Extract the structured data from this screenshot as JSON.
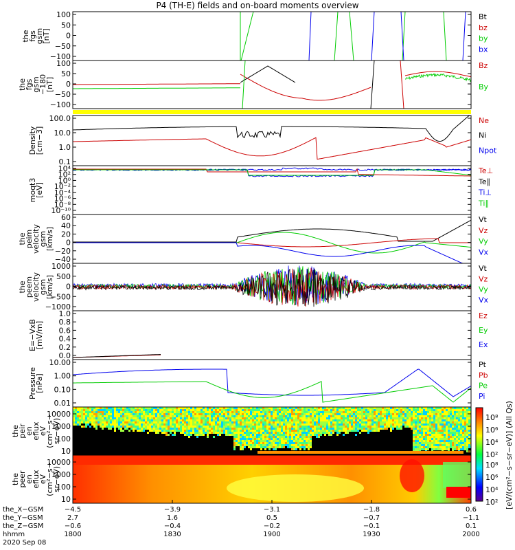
{
  "title": "P4 (TH-E) fields and on-board moments overview",
  "colors": {
    "black": "#000000",
    "red": "#cc0000",
    "green": "#00cc00",
    "blue": "#0000ee",
    "yellow": "#ffff00"
  },
  "chart_data": {
    "type": "line",
    "x_range": [
      "18:00",
      "20:00"
    ],
    "panels": [
      {
        "ylabel": [
          "the",
          "fgs",
          "gsm",
          "[nT]"
        ],
        "yticks": [
          "100",
          "50",
          "0",
          "−50",
          "−100"
        ],
        "ylim": [
          -100,
          100
        ],
        "scale": "linear",
        "legend": [
          {
            "name": "Bt",
            "color": "black"
          },
          {
            "name": "bz",
            "color": "red"
          },
          {
            "name": "by",
            "color": "green"
          },
          {
            "name": "bx",
            "color": "blue"
          }
        ]
      },
      {
        "ylabel": [
          "the",
          "fgs",
          "gsm",
          "−180",
          "[nT]"
        ],
        "yticks": [
          "100",
          "50",
          "0",
          "−50",
          "−100"
        ],
        "ylim": [
          -120,
          120
        ],
        "scale": "linear",
        "legend": [
          {
            "name": "Bz",
            "color": "red"
          },
          {
            "name": "By",
            "color": "green"
          }
        ]
      },
      {
        "ylabel": [
          "Density",
          "[cm−3]"
        ],
        "yticks": [
          "100.0",
          "10.0",
          "1.0",
          "0.1"
        ],
        "ylim": [
          0.05,
          200
        ],
        "scale": "log",
        "legend": [
          {
            "name": "Ne",
            "color": "red"
          },
          {
            "name": "Ni",
            "color": "black"
          },
          {
            "name": "Npot",
            "color": "blue"
          }
        ]
      },
      {
        "ylabel": [
          "moqt3",
          "[eV]"
        ],
        "yticks": [
          "10⁴",
          "10²",
          "10⁰",
          "10⁻²",
          "10⁻⁴",
          "10⁻⁶",
          "10⁻⁸",
          "10⁻¹⁰"
        ],
        "ylim": [
          1e-11,
          100000.0
        ],
        "scale": "log",
        "legend": [
          {
            "name": "Te⊥",
            "color": "red"
          },
          {
            "name": "Te∥",
            "color": "black"
          },
          {
            "name": "Ti⊥",
            "color": "blue"
          },
          {
            "name": "Ti∥",
            "color": "green"
          }
        ]
      },
      {
        "ylabel": [
          "the",
          "peim",
          "velocity",
          "gsm",
          "[km/s]"
        ],
        "yticks": [
          "60",
          "40",
          "20",
          "0",
          "−20",
          "−40"
        ],
        "ylim": [
          -40,
          60
        ],
        "scale": "linear",
        "legend": [
          {
            "name": "Vt",
            "color": "black"
          },
          {
            "name": "Vz",
            "color": "red"
          },
          {
            "name": "Vy",
            "color": "green"
          },
          {
            "name": "Vx",
            "color": "blue"
          }
        ]
      },
      {
        "ylabel": [
          "the",
          "peem",
          "velocity",
          "gsm",
          "[km/s]"
        ],
        "yticks": [
          "1000",
          "500",
          "0",
          "−500",
          "−1000"
        ],
        "ylim": [
          -1000,
          1000
        ],
        "scale": "linear",
        "legend": [
          {
            "name": "Vt",
            "color": "black"
          },
          {
            "name": "Vz",
            "color": "red"
          },
          {
            "name": "Vy",
            "color": "green"
          },
          {
            "name": "Vx",
            "color": "blue"
          }
        ]
      },
      {
        "ylabel": [
          "E=−VxB",
          "[mV/m]"
        ],
        "yticks": [
          "1.0",
          "0.8",
          "0.6",
          "0.4",
          "0.2",
          "0.0"
        ],
        "ylim": [
          0,
          1
        ],
        "scale": "linear",
        "legend": [
          {
            "name": "Ez",
            "color": "red"
          },
          {
            "name": "Ey",
            "color": "green"
          },
          {
            "name": "Ex",
            "color": "blue"
          }
        ]
      },
      {
        "ylabel": [
          "Pressure",
          "[nPa]"
        ],
        "yticks": [
          "10.00",
          "1.00",
          "0.10",
          "0.01"
        ],
        "ylim": [
          0.005,
          30
        ],
        "scale": "log",
        "legend": [
          {
            "name": "Pt",
            "color": "black"
          },
          {
            "name": "Pb",
            "color": "red"
          },
          {
            "name": "Pe",
            "color": "green"
          },
          {
            "name": "Pi",
            "color": "blue"
          }
        ]
      },
      {
        "ylabel": [
          "the",
          "peir",
          "en",
          "eflux",
          "eV",
          "(cm²−s−",
          "sr−eV)"
        ],
        "yticks": [
          "10000",
          "1000",
          "100",
          "10"
        ],
        "scale": "log",
        "kind": "spectrogram"
      },
      {
        "ylabel": [
          "the",
          "peer",
          "en",
          "eflux",
          "eV",
          "(cm²−s−",
          "sr−eV)"
        ],
        "yticks": [
          "10000",
          "1000",
          "100",
          "10"
        ],
        "scale": "log",
        "kind": "spectrogram"
      }
    ],
    "colorbar": {
      "ticks": [
        "10⁸",
        "10⁶",
        "10⁴",
        "10²"
      ],
      "label": "[eV/(cm²−s−sr−eV)] (All Qs)"
    },
    "x_axis_rows": [
      {
        "label": "the_X−GSM",
        "values": [
          "−4.5",
          "−3.9",
          "−3.1",
          "−1.8",
          "0.6"
        ]
      },
      {
        "label": "the_Y−GSM",
        "values": [
          "2.7",
          "1.6",
          "0.5",
          "−0.7",
          "−1.1"
        ]
      },
      {
        "label": "the_Z−GSM",
        "values": [
          "−0.6",
          "−0.4",
          "−0.2",
          "−0.1",
          "0.1"
        ]
      },
      {
        "label": "hhmm",
        "values": [
          "1800",
          "1830",
          "1900",
          "1930",
          "2000"
        ]
      }
    ],
    "date": "2020 Sep 08"
  }
}
